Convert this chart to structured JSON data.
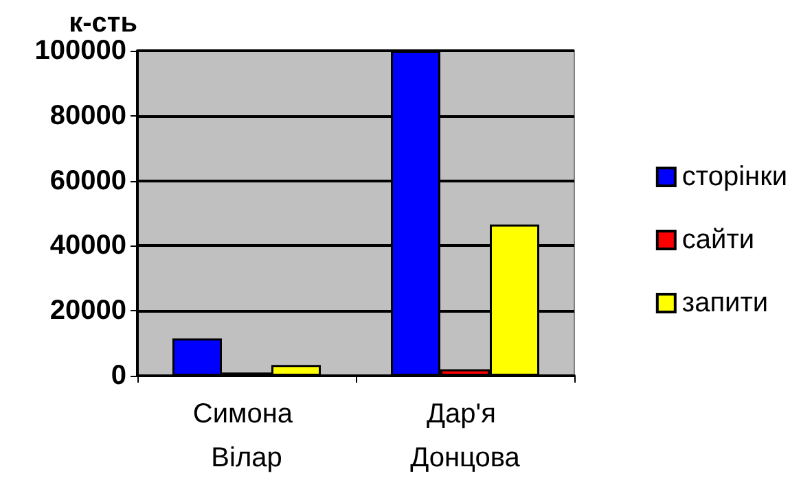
{
  "chart_data": {
    "type": "bar",
    "ylabel": "к-сть",
    "categories": [
      "Симона Вілар",
      "Дар'я Донцова"
    ],
    "series": [
      {
        "name": "сторінки",
        "color": "#0000ff",
        "values": [
          11500,
          100000
        ]
      },
      {
        "name": "сайти",
        "color": "#ff0000",
        "values": [
          1000,
          2000
        ]
      },
      {
        "name": "запити",
        "color": "#ffff00",
        "values": [
          3300,
          46500
        ]
      }
    ],
    "ylim": [
      0,
      100000
    ],
    "yticks": [
      0,
      20000,
      40000,
      60000,
      80000,
      100000
    ],
    "grid": "y",
    "legend": "right"
  }
}
